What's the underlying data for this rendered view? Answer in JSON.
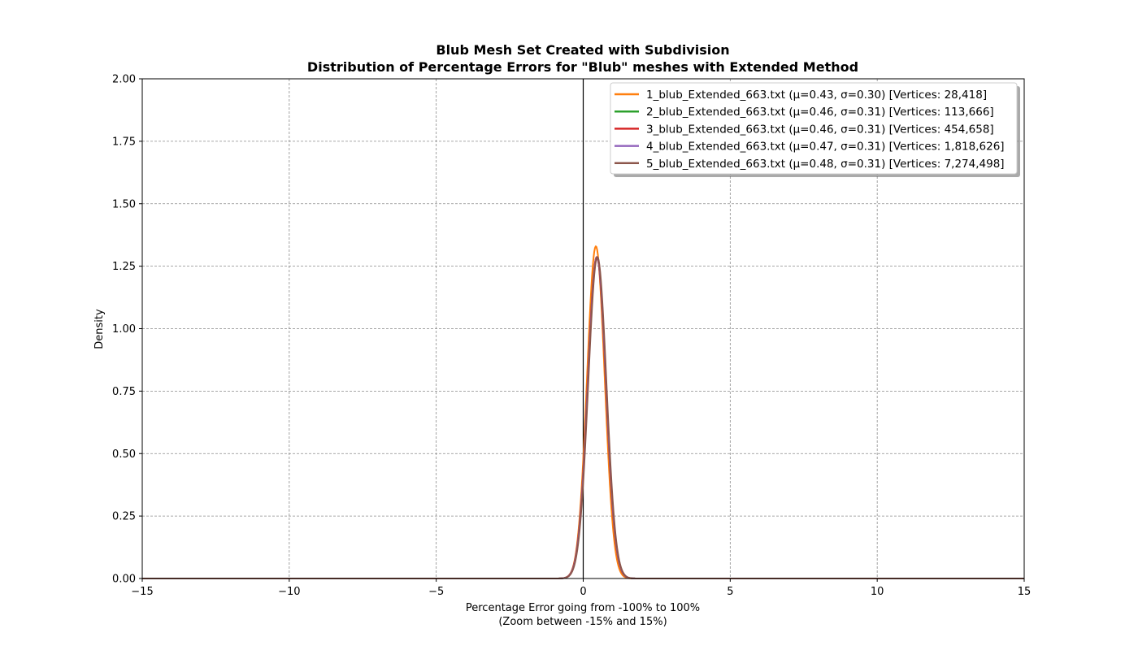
{
  "chart_data": {
    "type": "line",
    "title": "Blub Mesh Set Created with Subdivision",
    "subtitle": "Distribution of Percentage Errors for \"Blub\" meshes with Extended Method",
    "xlabel": "Percentage Error going from -100% to 100%",
    "xlabel_sub": "(Zoom between -15% and 15%)",
    "ylabel": "Density",
    "xlim": [
      -15,
      15
    ],
    "ylim": [
      0,
      2
    ],
    "x_ticks": [
      -15,
      -10,
      -5,
      0,
      5,
      10,
      15
    ],
    "x_tick_labels": [
      "−15",
      "−10",
      "−5",
      "0",
      "5",
      "10",
      "15"
    ],
    "y_ticks": [
      0,
      0.25,
      0.5,
      0.75,
      1.0,
      1.25,
      1.5,
      1.75,
      2.0
    ],
    "y_tick_labels": [
      "0.00",
      "0.25",
      "0.50",
      "0.75",
      "1.00",
      "1.25",
      "1.50",
      "1.75",
      "2.00"
    ],
    "grid": true,
    "vertical_reference_line_x": 0,
    "legend_position": "top-right",
    "series": [
      {
        "name": "1_blub_Extended_663.txt (μ=0.43, σ=0.30) [Vertices: 28,418]",
        "mu": 0.43,
        "sigma": 0.3,
        "color": "#ff7f0e"
      },
      {
        "name": "2_blub_Extended_663.txt (μ=0.46, σ=0.31) [Vertices: 113,666]",
        "mu": 0.46,
        "sigma": 0.31,
        "color": "#2ca02c"
      },
      {
        "name": "3_blub_Extended_663.txt (μ=0.46, σ=0.31) [Vertices: 454,658]",
        "mu": 0.46,
        "sigma": 0.31,
        "color": "#d62728"
      },
      {
        "name": "4_blub_Extended_663.txt (μ=0.47, σ=0.31) [Vertices: 1,818,626]",
        "mu": 0.47,
        "sigma": 0.31,
        "color": "#9467bd"
      },
      {
        "name": "5_blub_Extended_663.txt (μ=0.48, σ=0.31) [Vertices: 7,274,498]",
        "mu": 0.48,
        "sigma": 0.31,
        "color": "#8c564b"
      }
    ]
  }
}
